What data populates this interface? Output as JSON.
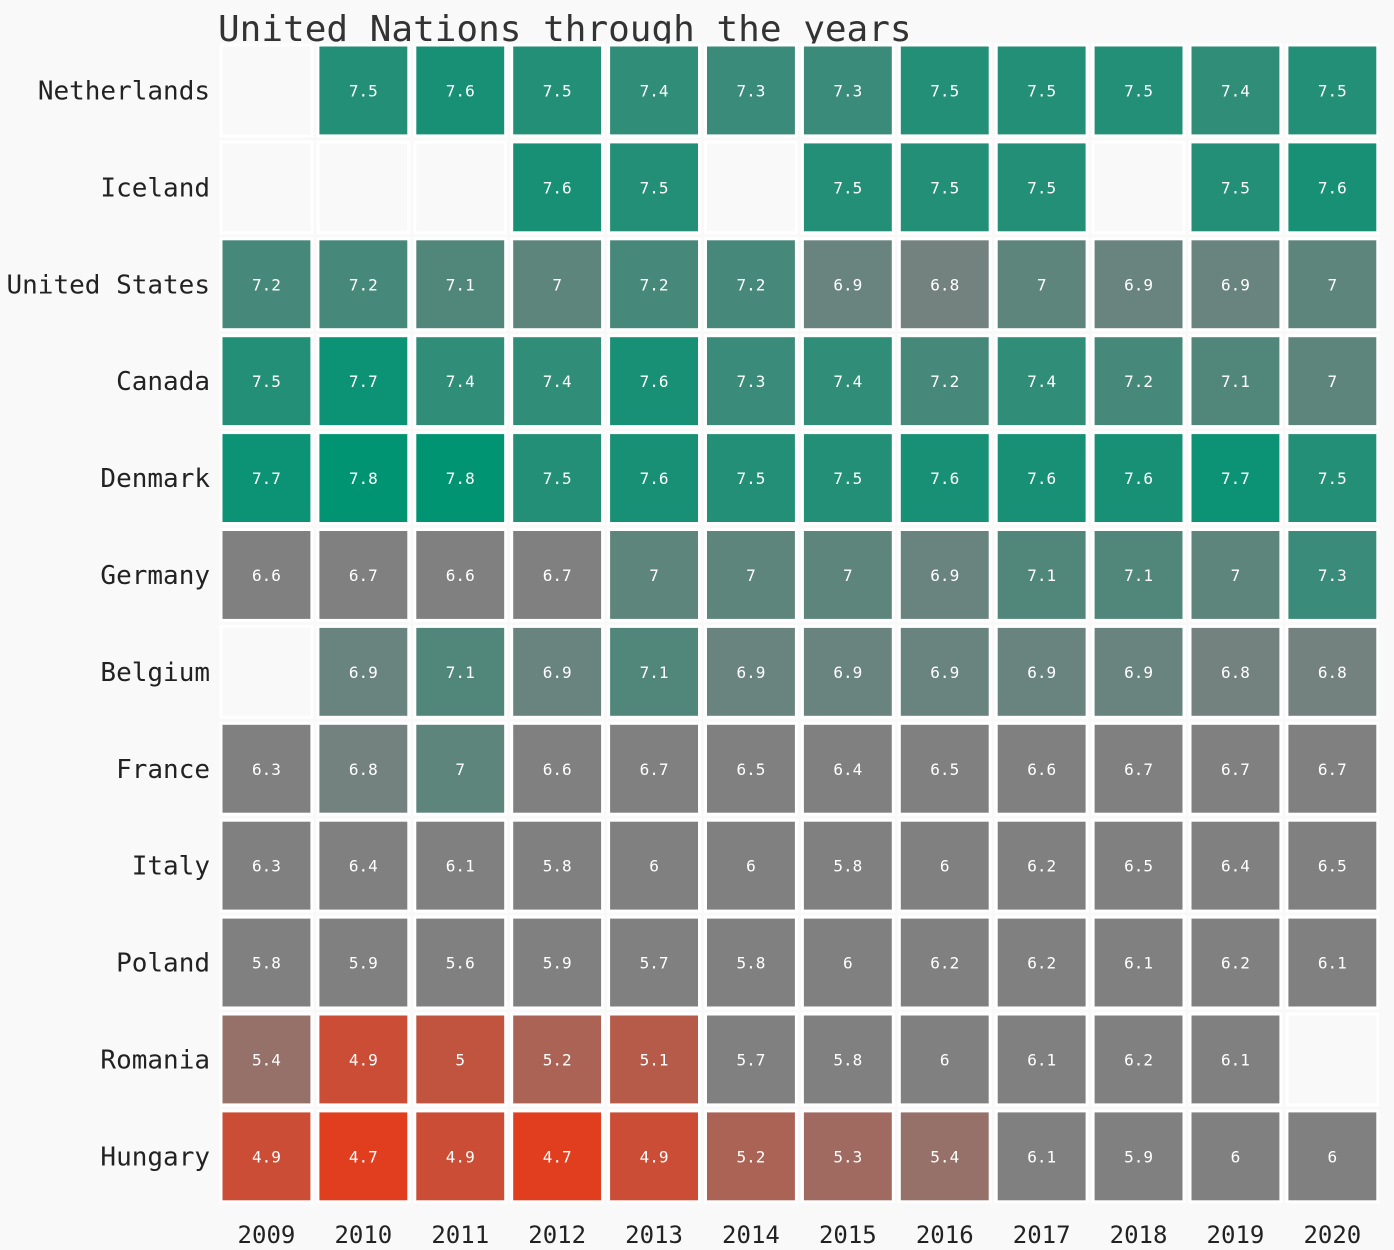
{
  "chart_data": {
    "type": "heatmap",
    "title": "United Nations through the years",
    "x": [
      "2009",
      "2010",
      "2011",
      "2012",
      "2013",
      "2014",
      "2015",
      "2016",
      "2017",
      "2018",
      "2019",
      "2020"
    ],
    "y": [
      "Netherlands",
      "Iceland",
      "United States",
      "Canada",
      "Denmark",
      "Germany",
      "Belgium",
      "France",
      "Italy",
      "Poland",
      "Romania",
      "Hungary"
    ],
    "values": [
      [
        null,
        7.5,
        7.6,
        7.5,
        7.4,
        7.3,
        7.3,
        7.5,
        7.5,
        7.5,
        7.4,
        7.5
      ],
      [
        null,
        null,
        null,
        7.6,
        7.5,
        null,
        7.5,
        7.5,
        7.5,
        null,
        7.5,
        7.6
      ],
      [
        7.2,
        7.2,
        7.1,
        7,
        7.2,
        7.2,
        6.9,
        6.8,
        7,
        6.9,
        6.9,
        7
      ],
      [
        7.5,
        7.7,
        7.4,
        7.4,
        7.6,
        7.3,
        7.4,
        7.2,
        7.4,
        7.2,
        7.1,
        7
      ],
      [
        7.7,
        7.8,
        7.8,
        7.5,
        7.6,
        7.5,
        7.5,
        7.6,
        7.6,
        7.6,
        7.7,
        7.5
      ],
      [
        6.6,
        6.7,
        6.6,
        6.7,
        7,
        7,
        7,
        6.9,
        7.1,
        7.1,
        7,
        7.3
      ],
      [
        null,
        6.9,
        7.1,
        6.9,
        7.1,
        6.9,
        6.9,
        6.9,
        6.9,
        6.9,
        6.8,
        6.8
      ],
      [
        6.3,
        6.8,
        7,
        6.6,
        6.7,
        6.5,
        6.4,
        6.5,
        6.6,
        6.7,
        6.7,
        6.7
      ],
      [
        6.3,
        6.4,
        6.1,
        5.8,
        6,
        6,
        5.8,
        6,
        6.2,
        6.5,
        6.4,
        6.5
      ],
      [
        5.8,
        5.9,
        5.6,
        5.9,
        5.7,
        5.8,
        6,
        6.2,
        6.2,
        6.1,
        6.2,
        6.1
      ],
      [
        5.4,
        4.9,
        5,
        5.2,
        5.1,
        5.7,
        5.8,
        6,
        6.1,
        6.2,
        6.1,
        null
      ],
      [
        4.9,
        4.7,
        4.9,
        4.7,
        4.9,
        5.2,
        5.3,
        5.4,
        6.1,
        5.9,
        6,
        6
      ]
    ],
    "colors": {
      "low": "#e13e1f",
      "mid": "#808080",
      "high": "#009473",
      "empty": "#f9f9f9",
      "background": "#f9f9f9",
      "cell_text": "#ffffff"
    },
    "color_scale": {
      "min": 4.7,
      "mid_low": 5.6,
      "mid_high": 6.7,
      "max": 7.8
    },
    "grid": false,
    "legend": "none"
  }
}
